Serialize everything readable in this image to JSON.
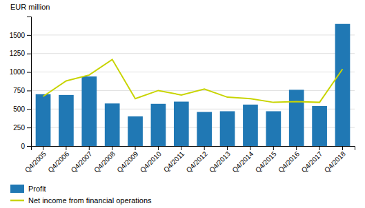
{
  "chart_data": {
    "type": "bar",
    "ylabel": "EUR million",
    "categories": [
      "Q4/2005",
      "Q4/2006",
      "Q4/2007",
      "Q4/2008",
      "Q4/2009",
      "Q4/2010",
      "Q4/2011",
      "Q4/2012",
      "Q4/2013",
      "Q4/2014",
      "Q4/2015",
      "Q4/2016",
      "Q4/2017",
      "Q4/2018"
    ],
    "series": [
      {
        "name": "Profit",
        "type": "bar",
        "color": "#2078b4",
        "values": [
          700,
          690,
          940,
          575,
          400,
          570,
          600,
          460,
          470,
          560,
          470,
          760,
          540,
          1650
        ]
      },
      {
        "name": "Net income from financial operations",
        "type": "line",
        "color": "#c8d400",
        "values": [
          670,
          880,
          960,
          1170,
          640,
          750,
          690,
          770,
          660,
          640,
          590,
          600,
          590,
          1040
        ]
      }
    ],
    "ylim": [
      0,
      1750
    ],
    "yticks": [
      0,
      250,
      500,
      750,
      1000,
      1250,
      1500
    ],
    "grid": true,
    "legend": "bottom"
  }
}
